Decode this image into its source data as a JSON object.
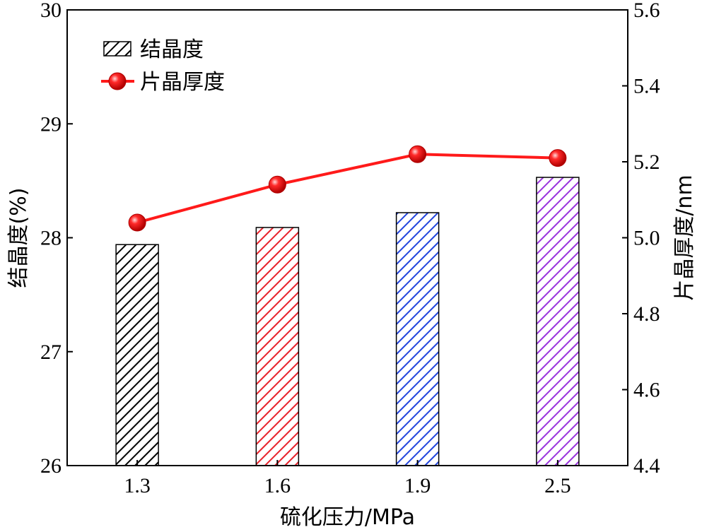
{
  "chart_data": {
    "type": "bar",
    "categories": [
      "1.3",
      "1.6",
      "1.9",
      "2.5"
    ],
    "xlabel": "硫化压力/MPa",
    "ylabel": "结晶度(%)",
    "y2label": "片晶厚度/nm",
    "ylim": [
      26,
      30
    ],
    "y2lim": [
      4.4,
      5.6
    ],
    "yticks": [
      "26",
      "27",
      "28",
      "29",
      "30"
    ],
    "y2ticks": [
      "4.4",
      "4.6",
      "4.8",
      "5.0",
      "5.2",
      "5.4",
      "5.6"
    ],
    "grid": false,
    "legend_position": "top-left",
    "series": [
      {
        "name": "结晶度",
        "type": "bar",
        "axis": "left",
        "values": [
          27.94,
          28.09,
          28.22,
          28.53
        ],
        "colors": [
          "#000000",
          "#e8202a",
          "#2244dd",
          "#9933dd"
        ],
        "pattern": "diagonal-hatch"
      },
      {
        "name": "片晶厚度",
        "type": "line",
        "axis": "right",
        "values": [
          5.04,
          5.14,
          5.22,
          5.21
        ],
        "color": "#ff1a1a",
        "marker": "circle"
      }
    ]
  }
}
